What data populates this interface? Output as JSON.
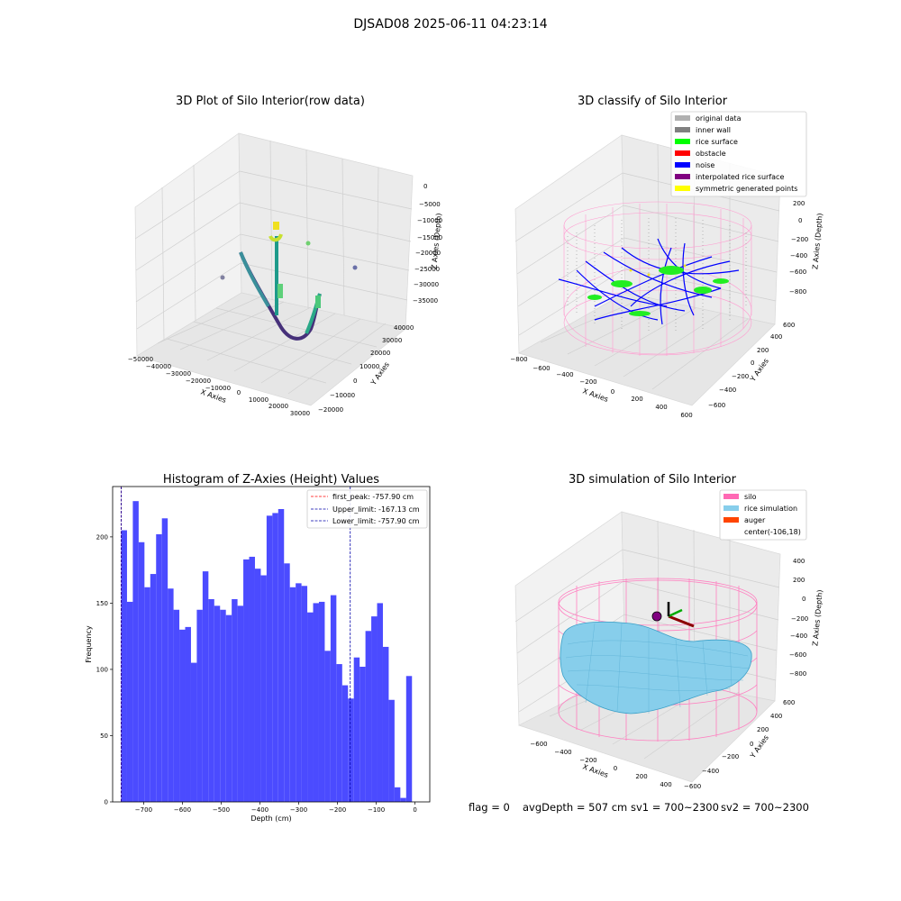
{
  "figure": {
    "suptitle": "DJSAD08 2025-06-11 04:23:14",
    "footer": {
      "flag": "flag = 0",
      "avg_depth": "avgDepth = 507 cm",
      "sv1": "sv1 = 700~2300",
      "sv2": "sv2 = 700~2300"
    }
  },
  "colors": {
    "histogram_bar": "#4b4bff",
    "first_peak_line": "#ff0000",
    "limit_line": "#0000aa",
    "silo_wire": "#ff69b4",
    "rice_surface": "#87ceeb",
    "auger": "#ff4500",
    "noise": "#0000ff",
    "rice": "#00ff00",
    "inner_wall": "#808080",
    "original": "#b0b0b0"
  },
  "chart_data": [
    {
      "type": "scatter",
      "projection": "3d",
      "title": "3D Plot of Silo Interior(row data)",
      "xlabel": "X Axies",
      "ylabel": "Y Axies",
      "zlabel": "Z Axies (Depth)",
      "x_ticks": [
        "−50000",
        "−40000",
        "−30000",
        "−20000",
        "−10000",
        "0",
        "10000",
        "20000",
        "30000"
      ],
      "y_ticks": [
        "−20000",
        "−10000",
        "0",
        "10000",
        "20000",
        "30000",
        "40000"
      ],
      "z_ticks": [
        "0",
        "−5000",
        "−10000",
        "−15000",
        "−20000",
        "−25000",
        "−30000",
        "−35000"
      ],
      "grid": true
    },
    {
      "type": "scatter",
      "projection": "3d",
      "title": "3D classify of Silo Interior",
      "xlabel": "X Axies",
      "ylabel": "Y Axies",
      "zlabel": "Z Axies (Depth)",
      "x_ticks": [
        "−800",
        "−600",
        "−400",
        "−200",
        "0",
        "200",
        "400",
        "600"
      ],
      "y_ticks": [
        "−600",
        "−400",
        "−200",
        "0",
        "200",
        "400",
        "600"
      ],
      "z_ticks": [
        "200",
        "0",
        "−200",
        "−400",
        "−600",
        "−800"
      ],
      "legend_position": "top-right",
      "legend": [
        {
          "label": "original data",
          "color": "#b0b0b0"
        },
        {
          "label": "inner wall",
          "color": "#808080"
        },
        {
          "label": "rice surface",
          "color": "#00ff00"
        },
        {
          "label": "obstacle",
          "color": "#ff0000"
        },
        {
          "label": "noise",
          "color": "#0000ff"
        },
        {
          "label": "interpolated rice surface",
          "color": "#800080"
        },
        {
          "label": "symmetric generated points",
          "color": "#ffff00"
        }
      ],
      "grid": true
    },
    {
      "type": "bar",
      "title": "Histogram of Z-Axies (Height) Values",
      "xlabel": "Depth (cm)",
      "ylabel": "Frequency",
      "xlim": [
        -780,
        38
      ],
      "ylim": [
        0,
        238
      ],
      "x_ticks": [
        -700,
        -600,
        -500,
        -400,
        -300,
        -200,
        -100,
        0
      ],
      "x_tick_labels": [
        "−700",
        "−600",
        "−500",
        "−400",
        "−300",
        "−200",
        "−100",
        "0"
      ],
      "y_ticks": [
        0,
        50,
        100,
        150,
        200
      ],
      "bin_start": -757.9,
      "bin_width": 15,
      "values": [
        205,
        151,
        227,
        196,
        162,
        172,
        202,
        214,
        161,
        145,
        130,
        132,
        105,
        145,
        174,
        153,
        148,
        145,
        141,
        153,
        148,
        183,
        185,
        176,
        171,
        216,
        218,
        221,
        180,
        162,
        165,
        163,
        143,
        150,
        151,
        114,
        156,
        104,
        88,
        78,
        109,
        102,
        129,
        140,
        150,
        117,
        77,
        11,
        3,
        95
      ],
      "vlines": [
        {
          "x": -757.9,
          "label": "first_peak: -757.90 cm",
          "color": "#ff0000"
        },
        {
          "x": -167.13,
          "label": "Upper_limit: -167.13 cm",
          "color": "#0000aa"
        },
        {
          "x": -757.9,
          "label": "Lower_limit: -757.90 cm",
          "color": "#0000aa"
        }
      ],
      "legend_position": "top-right",
      "grid": false
    },
    {
      "type": "surface",
      "projection": "3d",
      "title": "3D simulation of Silo Interior",
      "xlabel": "X Axies",
      "ylabel": "Y Axies",
      "zlabel": "Z Axies (Depth)",
      "x_ticks": [
        "−600",
        "−400",
        "−200",
        "0",
        "200",
        "400"
      ],
      "y_ticks": [
        "−600",
        "−400",
        "−200",
        "0",
        "200",
        "400",
        "600"
      ],
      "z_ticks": [
        "400",
        "200",
        "0",
        "−200",
        "−400",
        "−600",
        "−800"
      ],
      "legend_position": "top-right",
      "legend": [
        {
          "label": "silo",
          "color": "#ff69b4"
        },
        {
          "label": "rice simulation",
          "color": "#87ceeb"
        },
        {
          "label": "auger",
          "color": "#ff4500"
        },
        {
          "label": "center(-106,18)",
          "color": "none"
        }
      ],
      "grid": true
    }
  ]
}
